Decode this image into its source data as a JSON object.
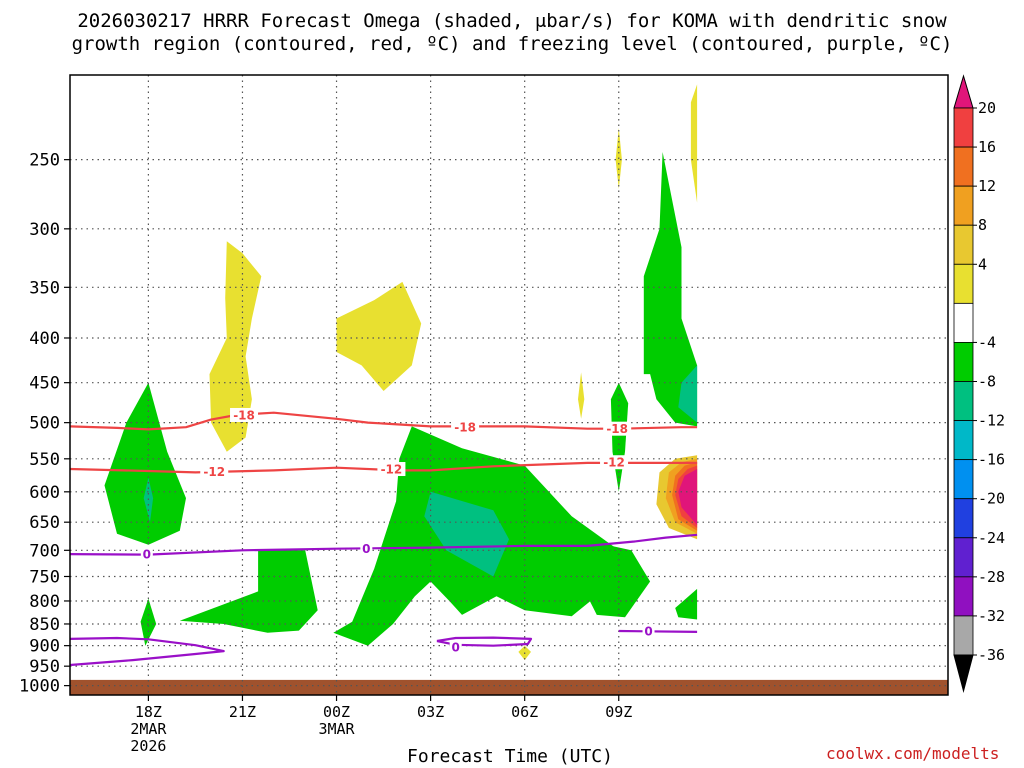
{
  "title": {
    "line1": "2026030217 HRRR Forecast Omega (shaded, μbar/s) for KOMA with dendritic snow",
    "line2": "growth region (contoured, red, ºC) and freezing level (contoured, purple, ºC)"
  },
  "credit": "coolwx.com/modelts",
  "chart_data": {
    "type": "time-height cross section",
    "title": "2026030217 HRRR Forecast Omega (shaded, μbar/s) for KOMA with dendritic snow growth region (contoured, red, ºC) and freezing level (contoured, purple, ºC)",
    "xlabel": "Forecast Time (UTC)",
    "ylabel": "",
    "y_axis": {
      "scale": "log-pressure, inverted",
      "units": "hPa",
      "ylim": [
        1025,
        200
      ],
      "ticks": [
        250,
        300,
        350,
        400,
        450,
        500,
        550,
        600,
        650,
        700,
        750,
        800,
        850,
        900,
        950,
        1000
      ]
    },
    "x_axis": {
      "xlim": [
        -1.5,
        26.5
      ],
      "unit": "hours after 2026-03-02 17Z",
      "ticks": [
        {
          "t": 1,
          "label": "18Z",
          "sub1": "2MAR",
          "sub2": "2026"
        },
        {
          "t": 4,
          "label": "21Z",
          "sub1": "",
          "sub2": ""
        },
        {
          "t": 7,
          "label": "00Z",
          "sub1": "3MAR",
          "sub2": ""
        },
        {
          "t": 10,
          "label": "03Z",
          "sub1": "",
          "sub2": ""
        },
        {
          "t": 13,
          "label": "06Z",
          "sub1": "",
          "sub2": ""
        },
        {
          "t": 16,
          "label": "09Z",
          "sub1": "",
          "sub2": ""
        }
      ]
    },
    "grid": true,
    "colorbar": {
      "labels": [
        20,
        16,
        12,
        8,
        4,
        -4,
        -8,
        -12,
        -16,
        -20,
        -24,
        -28,
        -32,
        -36
      ],
      "bands": [
        {
          "range": "> 20",
          "color": "#e0157a"
        },
        {
          "range": "16 to 20",
          "color": "#f04040"
        },
        {
          "range": "12 to 16",
          "color": "#f07020"
        },
        {
          "range": "8 to 12",
          "color": "#f0a020"
        },
        {
          "range": "4 to 8",
          "color": "#e8c830"
        },
        {
          "range": "0 to 4",
          "color": "#e8e030"
        },
        {
          "range": "-4 to 4",
          "color": "#ffffff"
        },
        {
          "range": "-8 to -4",
          "color": "#00cc00"
        },
        {
          "range": "-12 to -8",
          "color": "#00c080"
        },
        {
          "range": "-16 to -12",
          "color": "#00b8c8"
        },
        {
          "range": "-20 to -16",
          "color": "#0090f0"
        },
        {
          "range": "-24 to -20",
          "color": "#2040e0"
        },
        {
          "range": "-28 to -24",
          "color": "#6020d0"
        },
        {
          "range": "-32 to -28",
          "color": "#9010c0"
        },
        {
          "range": "-36 to -32",
          "color": "#a8a8a8"
        },
        {
          "range": "< -36",
          "color": "#000000"
        }
      ]
    },
    "series": [
      {
        "name": "-18",
        "color": "#ee4444",
        "labels": [
          {
            "t": 4.05,
            "p": 490
          },
          {
            "t": 11.1,
            "p": 506
          },
          {
            "t": 15.95,
            "p": 508
          }
        ],
        "points": [
          [
            -1.5,
            505
          ],
          [
            0,
            507
          ],
          [
            1,
            509
          ],
          [
            2.2,
            506
          ],
          [
            3,
            496
          ],
          [
            3.8,
            490
          ],
          [
            5,
            487
          ],
          [
            7,
            495
          ],
          [
            8,
            500
          ],
          [
            10,
            505
          ],
          [
            13,
            505
          ],
          [
            15,
            508
          ],
          [
            16,
            508
          ],
          [
            18,
            506
          ],
          [
            18.5,
            506
          ]
        ]
      },
      {
        "name": "-12",
        "color": "#ee4444",
        "labels": [
          {
            "t": 3.1,
            "p": 569
          },
          {
            "t": 8.75,
            "p": 565
          },
          {
            "t": 15.85,
            "p": 555
          }
        ],
        "points": [
          [
            -1.5,
            565
          ],
          [
            1,
            568
          ],
          [
            2.5,
            570
          ],
          [
            5,
            567
          ],
          [
            7,
            563
          ],
          [
            9,
            567
          ],
          [
            10,
            567
          ],
          [
            12,
            561
          ],
          [
            15,
            556
          ],
          [
            17,
            556
          ],
          [
            18.5,
            556
          ]
        ]
      },
      {
        "name": "0 (freezing level)",
        "color": "#9a10c8",
        "labels": [
          {
            "t": 0.95,
            "p": 707
          },
          {
            "t": 7.95,
            "p": 697
          }
        ],
        "points": [
          [
            -1.5,
            707
          ],
          [
            1,
            708
          ],
          [
            4,
            700
          ],
          [
            7,
            697
          ],
          [
            10,
            695
          ],
          [
            13,
            692
          ],
          [
            15,
            692
          ],
          [
            16.5,
            684
          ],
          [
            17.5,
            677
          ],
          [
            18.5,
            672
          ]
        ]
      },
      {
        "name": "0 (lower, west)",
        "color": "#9a10c8",
        "labels": [],
        "points": [
          [
            -1.5,
            884
          ],
          [
            0,
            882
          ],
          [
            1,
            885
          ],
          [
            2.5,
            899
          ],
          [
            3.4,
            913
          ],
          [
            2.5,
            920
          ],
          [
            0.5,
            935
          ],
          [
            -1.5,
            947
          ]
        ]
      },
      {
        "name": "0 (closed, 04Z)",
        "color": "#9a10c8",
        "labels": [
          {
            "t": 10.8,
            "p": 903
          }
        ],
        "points": [
          [
            10.2,
            889
          ],
          [
            10.8,
            882
          ],
          [
            12,
            881
          ],
          [
            13.2,
            884
          ],
          [
            13.1,
            896
          ],
          [
            12,
            900
          ],
          [
            10.8,
            898
          ],
          [
            10.2,
            889
          ]
        ]
      },
      {
        "name": "0 (east low)",
        "color": "#9a10c8",
        "labels": [
          {
            "t": 16.95,
            "p": 866
          }
        ],
        "points": [
          [
            16,
            866
          ],
          [
            18.5,
            868
          ]
        ]
      }
    ],
    "shaded_regions": [
      {
        "level": "-8 to -4",
        "color": "#00cc00",
        "points": [
          [
            1,
            450
          ],
          [
            1.6,
            540
          ],
          [
            2.2,
            610
          ],
          [
            2,
            665
          ],
          [
            1,
            690
          ],
          [
            0,
            670
          ],
          [
            -0.4,
            590
          ],
          [
            0.3,
            500
          ]
        ]
      },
      {
        "level": "-12 to -8",
        "color": "#00c080",
        "points": [
          [
            1,
            578
          ],
          [
            1.15,
            610
          ],
          [
            1.05,
            650
          ],
          [
            0.85,
            610
          ]
        ]
      },
      {
        "level": "-8 to -4",
        "color": "#00cc00",
        "points": [
          [
            1,
            795
          ],
          [
            1.25,
            850
          ],
          [
            0.9,
            900
          ],
          [
            0.75,
            845
          ]
        ]
      },
      {
        "level": "-8 to -4",
        "color": "#00cc00",
        "points": [
          [
            4.5,
            700
          ],
          [
            6,
            700
          ],
          [
            6.4,
            820
          ],
          [
            5.8,
            865
          ],
          [
            4.8,
            870
          ],
          [
            3.4,
            850
          ],
          [
            2,
            843
          ],
          [
            4.5,
            780
          ]
        ]
      },
      {
        "level": "-8 to -4",
        "color": "#00cc00",
        "points": [
          [
            9.4,
            505
          ],
          [
            11,
            535
          ],
          [
            13,
            560
          ],
          [
            14.5,
            640
          ],
          [
            16,
            700
          ],
          [
            15.1,
            800
          ],
          [
            14.5,
            833
          ],
          [
            13,
            820
          ],
          [
            12.1,
            790
          ],
          [
            11,
            830
          ],
          [
            10.6,
            800
          ],
          [
            10,
            760
          ],
          [
            9.5,
            790
          ],
          [
            8.8,
            850
          ],
          [
            8,
            900
          ],
          [
            6.9,
            870
          ],
          [
            7.5,
            845
          ],
          [
            8.2,
            735
          ],
          [
            8.9,
            615
          ],
          [
            9,
            550
          ]
        ]
      },
      {
        "level": "-12 to -8",
        "color": "#00c080",
        "points": [
          [
            10,
            600
          ],
          [
            12,
            630
          ],
          [
            12.5,
            680
          ],
          [
            12,
            750
          ],
          [
            10.5,
            700
          ],
          [
            9.8,
            640
          ]
        ]
      },
      {
        "level": "-8 to -4",
        "color": "#00cc00",
        "points": [
          [
            14.8,
            680
          ],
          [
            16.4,
            700
          ],
          [
            17,
            760
          ],
          [
            16.2,
            835
          ],
          [
            15.3,
            830
          ],
          [
            14.6,
            740
          ]
        ]
      },
      {
        "level": "-8 to -4",
        "color": "#00cc00",
        "points": [
          [
            16,
            450
          ],
          [
            16.3,
            475
          ],
          [
            16.2,
            540
          ],
          [
            16,
            600
          ],
          [
            15.8,
            540
          ],
          [
            15.75,
            470
          ]
        ]
      },
      {
        "level": "-8 to -4",
        "color": "#00cc00",
        "points": [
          [
            16.8,
            340
          ],
          [
            17.3,
            300
          ],
          [
            17.4,
            245
          ],
          [
            18,
            315
          ],
          [
            18,
            380
          ],
          [
            18.5,
            430
          ],
          [
            18.5,
            505
          ],
          [
            17.8,
            500
          ],
          [
            17.2,
            470
          ],
          [
            17,
            440
          ],
          [
            16.8,
            440
          ]
        ]
      },
      {
        "level": "-12 to -8",
        "color": "#00c080",
        "points": [
          [
            18.5,
            430
          ],
          [
            18.5,
            500
          ],
          [
            17.9,
            480
          ],
          [
            18,
            450
          ]
        ]
      },
      {
        "level": "-8 to -4",
        "color": "#00cc00",
        "points": [
          [
            18.5,
            775
          ],
          [
            18.5,
            840
          ],
          [
            17.9,
            835
          ],
          [
            17.8,
            815
          ]
        ]
      },
      {
        "level": "0 to 4",
        "color": "#e8e030",
        "points": [
          [
            3.5,
            310
          ],
          [
            4,
            320
          ],
          [
            4.6,
            340
          ],
          [
            4.3,
            380
          ],
          [
            4.1,
            420
          ],
          [
            4.3,
            470
          ],
          [
            4.1,
            520
          ],
          [
            3.5,
            540
          ],
          [
            3,
            500
          ],
          [
            2.95,
            440
          ],
          [
            3.5,
            400
          ],
          [
            3.45,
            360
          ]
        ]
      },
      {
        "level": "0 to 4",
        "color": "#e8e030",
        "points": [
          [
            9.1,
            345
          ],
          [
            9.7,
            385
          ],
          [
            9.4,
            430
          ],
          [
            8.5,
            460
          ],
          [
            7.8,
            430
          ],
          [
            7,
            415
          ],
          [
            7,
            380
          ],
          [
            8.2,
            362
          ]
        ]
      },
      {
        "level": "0 to 4",
        "color": "#e8e030",
        "points": [
          [
            16,
            230
          ],
          [
            16.1,
            250
          ],
          [
            16,
            270
          ],
          [
            15.9,
            250
          ]
        ]
      },
      {
        "level": "0 to 4",
        "color": "#e8e030",
        "points": [
          [
            14.8,
            438
          ],
          [
            14.9,
            470
          ],
          [
            14.8,
            495
          ],
          [
            14.7,
            470
          ]
        ]
      },
      {
        "level": "0 to 4",
        "color": "#e8e030",
        "points": [
          [
            13,
            900
          ],
          [
            13.2,
            915
          ],
          [
            13,
            935
          ],
          [
            12.8,
            915
          ]
        ]
      },
      {
        "level": "0 to 4",
        "color": "#e8e030",
        "points": [
          [
            18.5,
            205
          ],
          [
            18.5,
            280
          ],
          [
            18.3,
            250
          ],
          [
            18.3,
            215
          ]
        ]
      },
      {
        "level": "4 to 8",
        "color": "#e8c830",
        "points": [
          [
            18.5,
            545
          ],
          [
            18.5,
            680
          ],
          [
            17.6,
            660
          ],
          [
            17.2,
            620
          ],
          [
            17.3,
            570
          ],
          [
            17.8,
            550
          ]
        ]
      },
      {
        "level": "8 to 12",
        "color": "#f0a020",
        "points": [
          [
            18.5,
            550
          ],
          [
            18.5,
            670
          ],
          [
            17.8,
            650
          ],
          [
            17.5,
            610
          ],
          [
            17.6,
            570
          ],
          [
            18,
            555
          ]
        ]
      },
      {
        "level": "12 to 16",
        "color": "#f07020",
        "points": [
          [
            18.5,
            555
          ],
          [
            18.5,
            665
          ],
          [
            17.9,
            645
          ],
          [
            17.7,
            605
          ],
          [
            17.8,
            575
          ],
          [
            18.1,
            560
          ]
        ]
      },
      {
        "level": "16 to 20",
        "color": "#f04040",
        "points": [
          [
            18.5,
            560
          ],
          [
            18.5,
            660
          ],
          [
            18,
            640
          ],
          [
            17.8,
            605
          ],
          [
            17.9,
            580
          ],
          [
            18.2,
            565
          ]
        ]
      },
      {
        "level": "> 20",
        "color": "#e0157a",
        "points": [
          [
            18.5,
            565
          ],
          [
            18.5,
            655
          ],
          [
            18,
            625
          ],
          [
            17.9,
            600
          ],
          [
            18.1,
            575
          ]
        ]
      }
    ],
    "ground": {
      "color": "#a0522d",
      "surface_pressure": 985
    }
  }
}
